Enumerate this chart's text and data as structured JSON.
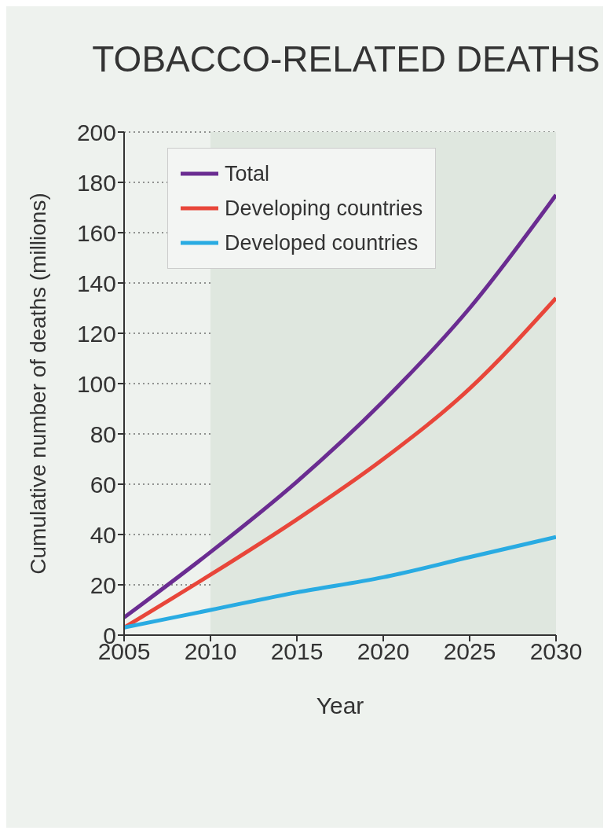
{
  "chart_data": {
    "type": "line",
    "title": "TOBACCO-RELATED DEATHS",
    "xlabel": "Year",
    "ylabel": "Cumulative number of deaths (millions)",
    "x": [
      2005,
      2010,
      2015,
      2020,
      2025,
      2030
    ],
    "series": [
      {
        "name": "Total",
        "color": "#6a2c91",
        "values": [
          7,
          33,
          61,
          93,
          130,
          175
        ]
      },
      {
        "name": "Developing countries",
        "color": "#e8463a",
        "values": [
          3,
          24,
          46,
          70,
          98,
          134
        ]
      },
      {
        "name": "Developed countries",
        "color": "#29abe2",
        "values": [
          3,
          10,
          17,
          23,
          31,
          39
        ]
      }
    ],
    "xlim": [
      2005,
      2030
    ],
    "xticks": [
      2005,
      2010,
      2015,
      2020,
      2025,
      2030
    ],
    "ylim": [
      0,
      200
    ],
    "yticks": [
      0,
      20,
      40,
      60,
      80,
      100,
      120,
      140,
      160,
      180,
      200
    ],
    "bands": [
      {
        "axis": "x",
        "from": 2010,
        "to": 2030,
        "color": "#dfe7df"
      }
    ],
    "grid": "y",
    "legend": "top left",
    "marker": "none",
    "line_style": "solid"
  }
}
